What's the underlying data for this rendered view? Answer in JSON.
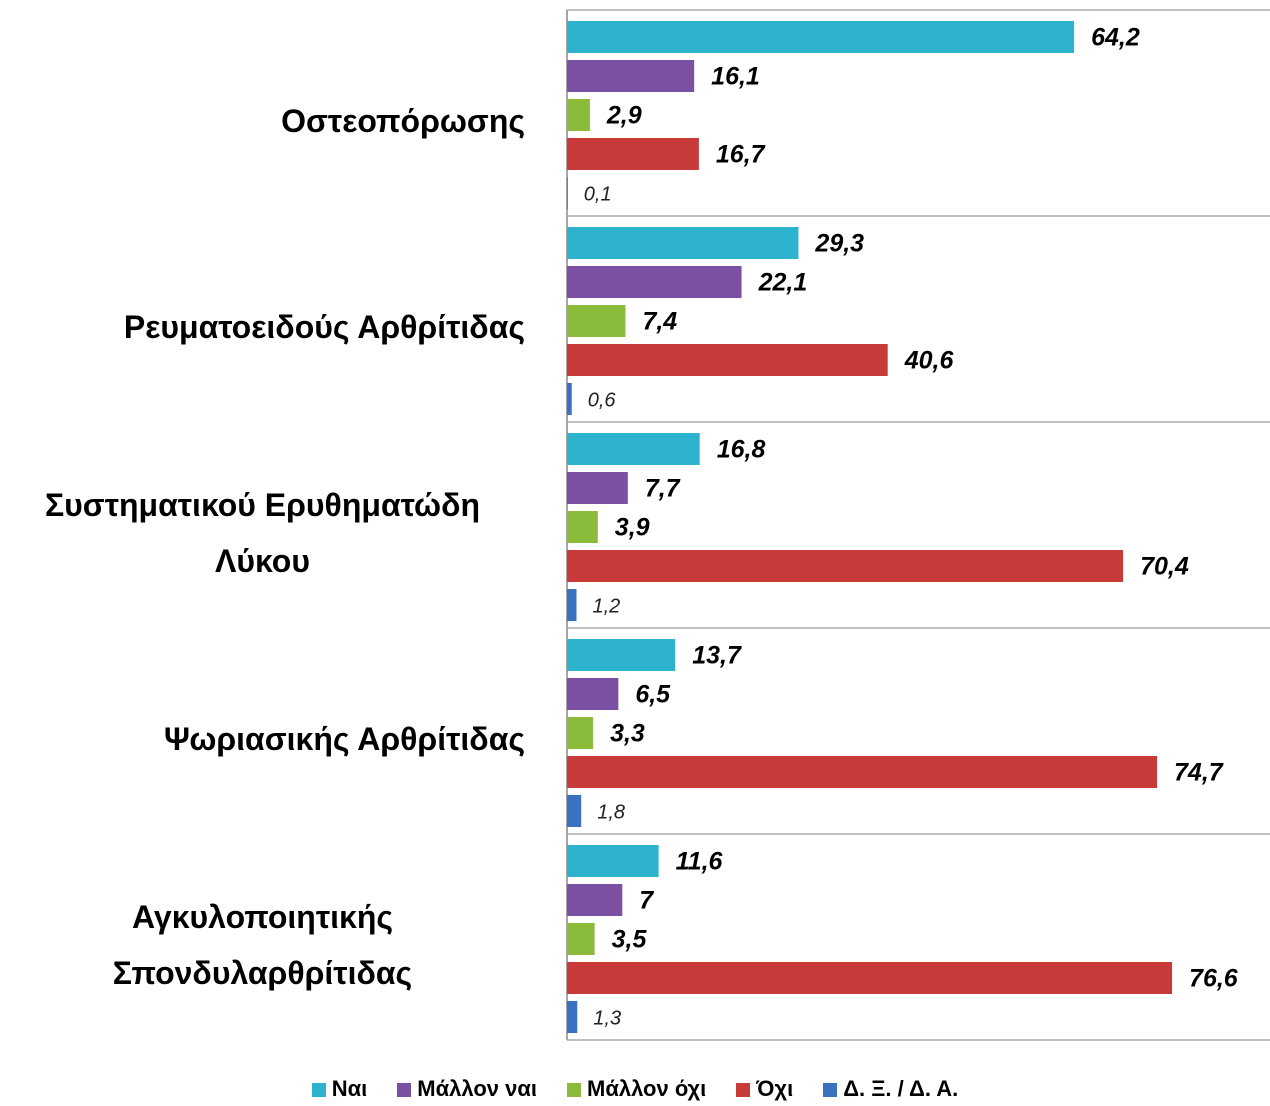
{
  "chart_data": {
    "type": "hbar",
    "categories": [
      "Οστεοπόρωσης",
      "Ρευματοειδούς Αρθρίτιδας",
      "Συστηματικού Ερυθηματώδη Λύκου",
      "Ψωριασικής Αρθρίτιδας",
      "Αγκυλοποιητικής Σπονδυλαρθρίτιδας"
    ],
    "series": [
      {
        "name": "Ναι",
        "color": "#2eb3cf",
        "values": [
          64.2,
          29.3,
          16.8,
          13.7,
          11.6
        ],
        "value_labels": [
          "64,2",
          "29,3",
          "16,8",
          "13,7",
          "11,6"
        ]
      },
      {
        "name": "Μάλλον ναι",
        "color": "#7b4fa2",
        "values": [
          16.1,
          22.1,
          7.7,
          6.5,
          7
        ],
        "value_labels": [
          "16,1",
          "22,1",
          "7,7",
          "6,5",
          "7"
        ]
      },
      {
        "name": "Μάλλον όχι",
        "color": "#8bbb3a",
        "values": [
          2.9,
          7.4,
          3.9,
          3.3,
          3.5
        ],
        "value_labels": [
          "2,9",
          "7,4",
          "3,9",
          "3,3",
          "3,5"
        ]
      },
      {
        "name": "Όχι",
        "color": "#c93b3b",
        "values": [
          16.7,
          40.6,
          70.4,
          74.7,
          76.6
        ],
        "value_labels": [
          "16,7",
          "40,6",
          "70,4",
          "74,7",
          "76,6"
        ]
      },
      {
        "name": "Δ. Ξ. / Δ. Α.",
        "color": "#3a72c2",
        "values": [
          0.1,
          0.6,
          1.2,
          1.8,
          1.3
        ],
        "value_labels": [
          "0,1",
          "0,6",
          "1,2",
          "1,8",
          "1,3"
        ]
      }
    ],
    "xlim": [
      0,
      89
    ],
    "legend": "bottom"
  }
}
